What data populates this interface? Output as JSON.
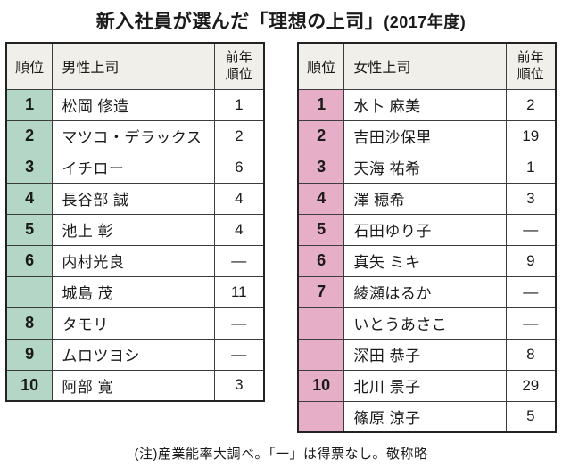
{
  "title_main": "新入社員が選んだ「理想の上司」",
  "title_year": "(2017年度)",
  "footnote": "(注)産業能率大調べ。「一」は得票なし。敬称略",
  "colors": {
    "male_rank_bg": "#b3d6c6",
    "female_rank_bg": "#e6aec7",
    "header_bg": "#f0efe9",
    "border": "#3c3c3c"
  },
  "chart_data": [
    {
      "type": "table",
      "title": "男性上司",
      "columns": [
        "順位",
        "男性上司",
        "前年順位"
      ],
      "rows": [
        {
          "rank": "1",
          "name": "松岡 修造",
          "prev": "1"
        },
        {
          "rank": "2",
          "name": "マツコ・デラックス",
          "prev": "2"
        },
        {
          "rank": "3",
          "name": "イチロー",
          "prev": "6"
        },
        {
          "rank": "4",
          "name": "長谷部 誠",
          "prev": "4"
        },
        {
          "rank": "5",
          "name": "池上 彰",
          "prev": "4"
        },
        {
          "rank": "6",
          "name": "内村光良",
          "prev": "—"
        },
        {
          "rank": "",
          "name": "城島 茂",
          "prev": "11"
        },
        {
          "rank": "8",
          "name": "タモリ",
          "prev": "—"
        },
        {
          "rank": "9",
          "name": "ムロツヨシ",
          "prev": "—"
        },
        {
          "rank": "10",
          "name": "阿部 寛",
          "prev": "3"
        }
      ]
    },
    {
      "type": "table",
      "title": "女性上司",
      "columns": [
        "順位",
        "女性上司",
        "前年順位"
      ],
      "rows": [
        {
          "rank": "1",
          "name": "水卜 麻美",
          "prev": "2"
        },
        {
          "rank": "2",
          "name": "吉田沙保里",
          "prev": "19"
        },
        {
          "rank": "3",
          "name": "天海 祐希",
          "prev": "1"
        },
        {
          "rank": "4",
          "name": "澤 穂希",
          "prev": "3"
        },
        {
          "rank": "5",
          "name": "石田ゆり子",
          "prev": "—"
        },
        {
          "rank": "6",
          "name": "真矢 ミキ",
          "prev": "9"
        },
        {
          "rank": "7",
          "name": "綾瀬はるか",
          "prev": "—"
        },
        {
          "rank": "",
          "name": "いとうあさこ",
          "prev": "—"
        },
        {
          "rank": "",
          "name": "深田 恭子",
          "prev": "8"
        },
        {
          "rank": "10",
          "name": "北川 景子",
          "prev": "29"
        },
        {
          "rank": "",
          "name": "篠原 涼子",
          "prev": "5"
        }
      ]
    }
  ]
}
